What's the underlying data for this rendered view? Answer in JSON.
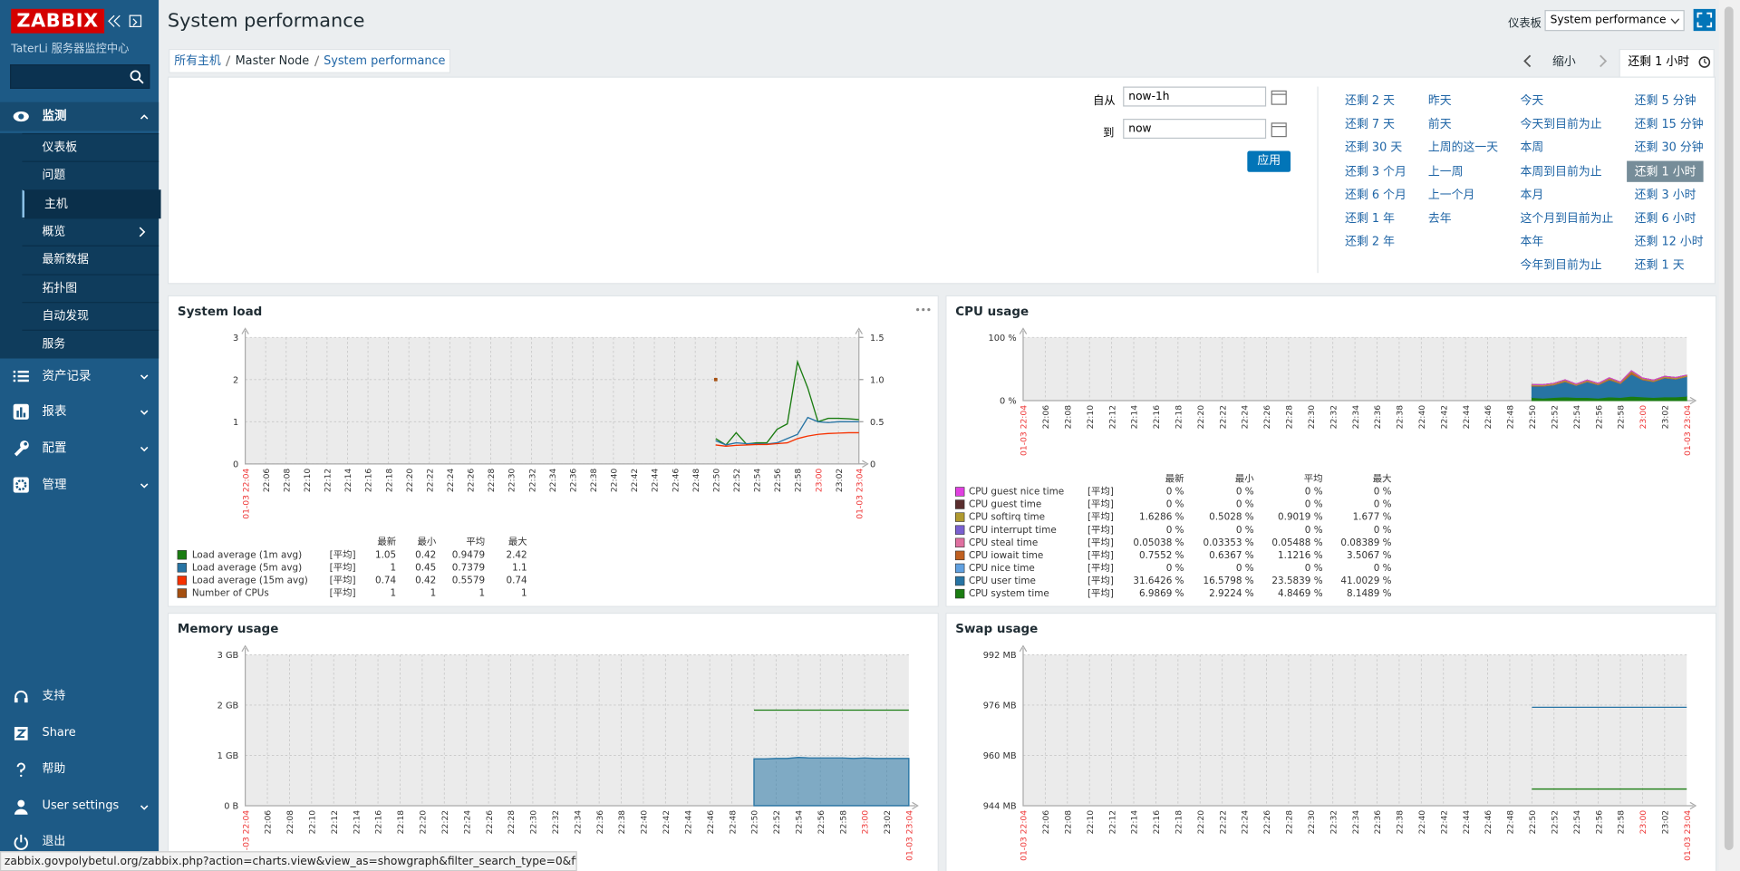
{
  "sidebar": {
    "logo": "ZABBIX",
    "server_name": "TaterLi 服务器监控中心",
    "menu": [
      {
        "label": "监测",
        "items": [
          "仪表板",
          "问题",
          "主机",
          "概览",
          "最新数据",
          "拓扑图",
          "自动发现",
          "服务"
        ]
      },
      {
        "label": "资产记录"
      },
      {
        "label": "报表"
      },
      {
        "label": "配置"
      },
      {
        "label": "管理"
      }
    ],
    "bottom": [
      "支持",
      "Share",
      "帮助",
      "User settings",
      "退出"
    ]
  },
  "header": {
    "title": "System performance",
    "dashboard_label": "仪表板",
    "dashboard_select": "System performance"
  },
  "breadcrumb": [
    "所有主机",
    "Master Node",
    "System performance"
  ],
  "time_nav": {
    "zoom_out": "缩小",
    "tab": "还剩 1 小时"
  },
  "filter": {
    "from_label": "自从",
    "from": "now-1h",
    "to_label": "到",
    "to": "now",
    "apply": "应用",
    "quick_ranges": [
      [
        "还剩 2 天",
        "还剩 7 天",
        "还剩 30 天",
        "还剩 3 个月",
        "还剩 6 个月",
        "还剩 1 年",
        "还剩 2 年"
      ],
      [
        "昨天",
        "前天",
        "上周的这一天",
        "上一周",
        "上一个月",
        "去年"
      ],
      [
        "今天",
        "今天到目前为止",
        "本周",
        "本周到目前为止",
        "本月",
        "这个月到目前为止",
        "本年",
        "今年到目前为止"
      ],
      [
        "还剩 5 分钟",
        "还剩 15 分钟",
        "还剩 30 分钟",
        "还剩 1 小时",
        "还剩 3 小时",
        "还剩 6 小时",
        "还剩 12 小时",
        "还剩 1 天"
      ]
    ]
  },
  "chart_data": [
    {
      "type": "line",
      "title": "System load",
      "x_start": "01-03 22:04",
      "x_end": "01-03 23:04",
      "xticks": [
        "22:06",
        "22:08",
        "22:10",
        "22:12",
        "22:14",
        "22:16",
        "22:18",
        "22:20",
        "22:22",
        "22:24",
        "22:26",
        "22:28",
        "22:30",
        "22:32",
        "22:34",
        "22:36",
        "22:38",
        "22:40",
        "22:42",
        "22:44",
        "22:46",
        "22:48",
        "22:50",
        "22:52",
        "22:54",
        "22:56",
        "22:58",
        "23:00",
        "23:02"
      ],
      "ylim": [
        0,
        3
      ],
      "yticks": [
        0,
        1,
        2,
        3
      ],
      "y2lim": [
        0,
        1.5
      ],
      "y2ticks": [
        0,
        0.5,
        {
          "value": 1,
          "label": "1.0"
        },
        1.5
      ],
      "legend_columns": [
        "最新",
        "最小",
        "平均",
        "最大"
      ],
      "x": [
        "22:50",
        "22:51",
        "22:52",
        "22:53",
        "22:54",
        "22:55",
        "22:56",
        "22:57",
        "22:58",
        "22:59",
        "23:00",
        "23:01",
        "23:02",
        "23:03",
        "23:04"
      ],
      "series": [
        {
          "name": "Load average (1m avg)",
          "color": "#1a7c11",
          "function": "[平均]",
          "stats": [
            "1.05",
            "0.42",
            "0.9479",
            "2.42"
          ],
          "values": [
            0.6,
            0.45,
            0.74,
            0.47,
            0.5,
            0.5,
            0.82,
            0.95,
            2.42,
            1.8,
            1.0,
            1.08,
            1.08,
            1.07,
            1.05
          ]
        },
        {
          "name": "Load average (5m avg)",
          "color": "#2774a4",
          "function": "[平均]",
          "stats": [
            "1",
            "0.45",
            "0.7379",
            "1.1"
          ],
          "values": [
            0.55,
            0.45,
            0.5,
            0.48,
            0.48,
            0.47,
            0.5,
            0.6,
            0.7,
            1.1,
            1.0,
            0.98,
            1.0,
            1.0,
            1.0
          ]
        },
        {
          "name": "Load average (15m avg)",
          "color": "#f63100",
          "function": "[平均]",
          "stats": [
            "0.74",
            "0.42",
            "0.5579",
            "0.74"
          ],
          "values": [
            0.45,
            0.42,
            0.44,
            0.45,
            0.46,
            0.46,
            0.48,
            0.5,
            0.6,
            0.66,
            0.7,
            0.72,
            0.73,
            0.74,
            0.74
          ]
        },
        {
          "name": "Number of CPUs",
          "color": "#a54f10",
          "axis": "y2",
          "function": "[平均]",
          "stats": [
            "1",
            "1",
            "1",
            "1"
          ],
          "values": [
            1,
            null,
            null,
            null,
            null,
            null,
            null,
            null,
            null,
            null,
            null,
            null,
            null,
            null,
            null
          ]
        }
      ]
    },
    {
      "type": "area",
      "stacked": true,
      "title": "CPU usage",
      "x_start": "01-03 22:04",
      "x_end": "01-03 23:04",
      "xticks": [
        "22:06",
        "22:08",
        "22:10",
        "22:12",
        "22:14",
        "22:16",
        "22:18",
        "22:20",
        "22:22",
        "22:24",
        "22:26",
        "22:28",
        "22:30",
        "22:32",
        "22:34",
        "22:36",
        "22:38",
        "22:40",
        "22:42",
        "22:44",
        "22:46",
        "22:48",
        "22:50",
        "22:52",
        "22:54",
        "22:56",
        "22:58",
        "23:00",
        "23:02"
      ],
      "ylim": [
        0,
        100
      ],
      "yticks": [
        {
          "value": 0,
          "label": "0 %"
        },
        {
          "value": 100,
          "label": "100 %"
        }
      ],
      "legend_columns": [
        "最新",
        "最小",
        "平均",
        "最大"
      ],
      "x": [
        "22:50",
        "22:51",
        "22:52",
        "22:53",
        "22:54",
        "22:55",
        "22:56",
        "22:57",
        "22:58",
        "22:59",
        "23:00",
        "23:01",
        "23:02",
        "23:03",
        "23:04"
      ],
      "series": [
        {
          "name": "CPU guest nice time",
          "color": "#e040e0",
          "function": "[平均]",
          "stats": [
            "0 %",
            "0 %",
            "0 %",
            "0 %"
          ],
          "values": [
            0,
            0,
            0,
            0,
            0,
            0,
            0,
            0,
            0,
            0,
            0,
            0,
            0,
            0,
            0
          ]
        },
        {
          "name": "CPU guest time",
          "color": "#5a2e2e",
          "function": "[平均]",
          "stats": [
            "0 %",
            "0 %",
            "0 %",
            "0 %"
          ],
          "values": [
            0,
            0,
            0,
            0,
            0,
            0,
            0,
            0,
            0,
            0,
            0,
            0,
            0,
            0,
            0
          ]
        },
        {
          "name": "CPU softirq time",
          "color": "#b09a30",
          "function": "[平均]",
          "stats": [
            "1.6286 %",
            "0.5028 %",
            "0.9019 %",
            "1.677 %"
          ],
          "values": [
            1.5,
            1.4,
            1.6,
            1.7,
            1.5,
            1.6,
            1.5,
            1.6,
            1.5,
            1.7,
            1.6,
            1.5,
            1.6,
            1.6,
            1.6
          ]
        },
        {
          "name": "CPU interrupt time",
          "color": "#7a60d0",
          "function": "[平均]",
          "stats": [
            "0 %",
            "0 %",
            "0 %",
            "0 %"
          ],
          "values": [
            0,
            0,
            0,
            0,
            0,
            0,
            0,
            0,
            0,
            0,
            0,
            0,
            0,
            0,
            0
          ]
        },
        {
          "name": "CPU steal time",
          "color": "#e070a0",
          "function": "[平均]",
          "stats": [
            "0.05038 %",
            "0.03353 %",
            "0.05488 %",
            "0.08389 %"
          ],
          "values": [
            0.05,
            0.05,
            0.05,
            0.05,
            0.05,
            0.05,
            0.05,
            0.05,
            0.05,
            0.08,
            0.05,
            0.05,
            0.05,
            0.05,
            0.05
          ]
        },
        {
          "name": "CPU iowait time",
          "color": "#c06020",
          "function": "[平均]",
          "stats": [
            "0.7552 %",
            "0.6367 %",
            "1.1216 %",
            "3.5067 %"
          ],
          "values": [
            1,
            0.8,
            0.9,
            1.2,
            0.7,
            1,
            0.8,
            1.5,
            1,
            3.5,
            1.2,
            1,
            1,
            0.9,
            0.8
          ]
        },
        {
          "name": "CPU nice time",
          "color": "#60a0e0",
          "function": "[平均]",
          "stats": [
            "0 %",
            "0 %",
            "0 %",
            "0 %"
          ],
          "values": [
            0,
            0,
            0,
            0,
            0,
            0,
            0,
            0,
            0,
            0,
            0,
            0,
            0,
            0,
            0
          ]
        },
        {
          "name": "CPU user time",
          "color": "#2774a4",
          "function": "[平均]",
          "stats": [
            "31.6426 %",
            "16.5798 %",
            "23.5839 %",
            "41.0029 %"
          ],
          "values": [
            18,
            19,
            20,
            24,
            19,
            25,
            21,
            27,
            22,
            35,
            27,
            25,
            30,
            28,
            31
          ]
        },
        {
          "name": "CPU system time",
          "color": "#1a7c11",
          "function": "[平均]",
          "stats": [
            "6.9869 %",
            "2.9224 %",
            "4.8469 %",
            "8.1489 %"
          ],
          "values": [
            5,
            4,
            5,
            6,
            5,
            5,
            4,
            6,
            5,
            7,
            6,
            5,
            6,
            6,
            7
          ]
        }
      ]
    },
    {
      "type": "line",
      "title": "Memory usage",
      "x_start": "01-03 22:04",
      "x_end": "01-03 23:04",
      "xticks": [
        "22:06",
        "22:08",
        "22:10",
        "22:12",
        "22:14",
        "22:16",
        "22:18",
        "22:20",
        "22:22",
        "22:24",
        "22:26",
        "22:28",
        "22:30",
        "22:32",
        "22:34",
        "22:36",
        "22:38",
        "22:40",
        "22:42",
        "22:44",
        "22:46",
        "22:48",
        "22:50",
        "22:52",
        "22:54",
        "22:56",
        "22:58",
        "23:00",
        "23:02"
      ],
      "ylim": [
        0,
        3
      ],
      "yticks": [
        {
          "value": 0,
          "label": "0 B"
        },
        {
          "value": 1,
          "label": "1 GB"
        },
        {
          "value": 2,
          "label": "2 GB"
        },
        {
          "value": 3,
          "label": "3 GB"
        }
      ],
      "x": [
        "22:50",
        "22:51",
        "22:52",
        "22:53",
        "22:54",
        "22:55",
        "22:56",
        "22:57",
        "22:58",
        "22:59",
        "23:00",
        "23:01",
        "23:02",
        "23:03",
        "23:04"
      ],
      "series": [
        {
          "color": "#1a7c11",
          "values": [
            1.9,
            1.9,
            1.9,
            1.9,
            1.9,
            1.9,
            1.9,
            1.9,
            1.9,
            1.9,
            1.9,
            1.9,
            1.9,
            1.9,
            1.9
          ]
        },
        {
          "color": "#2774a4",
          "fill": true,
          "values": [
            0.93,
            0.93,
            0.94,
            0.94,
            0.96,
            0.95,
            0.95,
            0.95,
            0.95,
            0.94,
            0.95,
            0.94,
            0.94,
            0.94,
            0.94
          ]
        }
      ]
    },
    {
      "type": "line",
      "title": "Swap usage",
      "x_start": "01-03 22:04",
      "x_end": "01-03 23:04",
      "xticks": [
        "22:06",
        "22:08",
        "22:10",
        "22:12",
        "22:14",
        "22:16",
        "22:18",
        "22:20",
        "22:22",
        "22:24",
        "22:26",
        "22:28",
        "22:30",
        "22:32",
        "22:34",
        "22:36",
        "22:38",
        "22:40",
        "22:42",
        "22:44",
        "22:46",
        "22:48",
        "22:50",
        "22:52",
        "22:54",
        "22:56",
        "22:58",
        "23:00",
        "23:02"
      ],
      "ylim": [
        944,
        992
      ],
      "yticks": [
        {
          "value": 944,
          "label": "944 MB"
        },
        {
          "value": 960,
          "label": "960 MB"
        },
        {
          "value": 976,
          "label": "976 MB"
        },
        {
          "value": 992,
          "label": "992 MB"
        }
      ],
      "x": [
        "22:50",
        "22:51",
        "22:52",
        "22:53",
        "22:54",
        "22:55",
        "22:56",
        "22:57",
        "22:58",
        "22:59",
        "23:00",
        "23:01",
        "23:02",
        "23:03",
        "23:04"
      ],
      "series": [
        {
          "color": "#2774a4",
          "values": [
            975.3,
            975.3,
            975.3,
            975.3,
            975.3,
            975.3,
            975.3,
            975.3,
            975.3,
            975.3,
            975.3,
            975.3,
            975.3,
            975.3,
            975.3
          ]
        },
        {
          "color": "#1a7c11",
          "values": [
            949.3,
            949.3,
            949.3,
            949.3,
            949.3,
            949.3,
            949.3,
            949.3,
            949.3,
            949.3,
            949.3,
            949.3,
            949.3,
            949.3,
            949.3
          ]
        }
      ]
    }
  ],
  "status_bar": "zabbix.govpolybetul.org/zabbix.php?action=charts.view&view_as=showgraph&filter_search_type=0&filter_..."
}
